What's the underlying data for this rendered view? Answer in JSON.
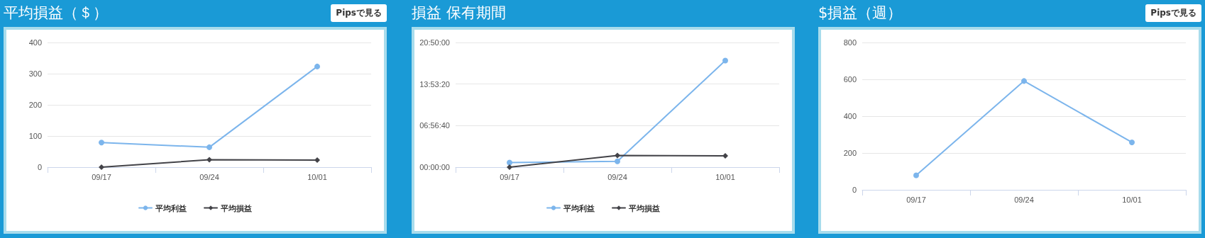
{
  "chart_data": [
    {
      "type": "line",
      "title": "平均損益（＄）",
      "annotations": [
        "Pipsで見る"
      ],
      "categories": [
        "09/17",
        "09/24",
        "10/01"
      ],
      "series": [
        {
          "name": "平均利益",
          "color": "#7cb5ec",
          "marker": "circle",
          "values": [
            79,
            64,
            323
          ]
        },
        {
          "name": "平均損益",
          "color": "#434348",
          "marker": "diamond",
          "values": [
            0,
            24,
            23
          ]
        }
      ],
      "ylim": [
        0,
        400
      ],
      "yticks": [
        0,
        100,
        200,
        300,
        400
      ],
      "grid": "y",
      "legend": "bottom"
    },
    {
      "type": "line",
      "title": "損益 保有期間",
      "categories": [
        "09/17",
        "09/24",
        "10/01"
      ],
      "series": [
        {
          "name": "平均利益",
          "color": "#7cb5ec",
          "marker": "circle",
          "values": [
            2800,
            3500,
            64100
          ]
        },
        {
          "name": "平均損益",
          "color": "#434348",
          "marker": "diamond",
          "values": [
            0,
            7000,
            6800
          ]
        }
      ],
      "ylim": [
        0,
        75000
      ],
      "yticks": [
        {
          "value": 0,
          "label": "00:00:00"
        },
        {
          "value": 25000,
          "label": "06:56:40"
        },
        {
          "value": 50000,
          "label": "13:53:20"
        },
        {
          "value": 75000,
          "label": "20:50:00"
        }
      ],
      "grid": "y",
      "legend": "bottom"
    },
    {
      "type": "line",
      "title": "$損益（週）",
      "annotations": [
        "Pipsで見る"
      ],
      "categories": [
        "09/17",
        "09/24",
        "10/01"
      ],
      "series": [
        {
          "color": "#7cb5ec",
          "marker": "circle",
          "values": [
            79,
            591,
            258
          ]
        }
      ],
      "ylim": [
        0,
        800
      ],
      "yticks": [
        0,
        200,
        400,
        600,
        800
      ],
      "grid": "y",
      "legend": false
    }
  ]
}
